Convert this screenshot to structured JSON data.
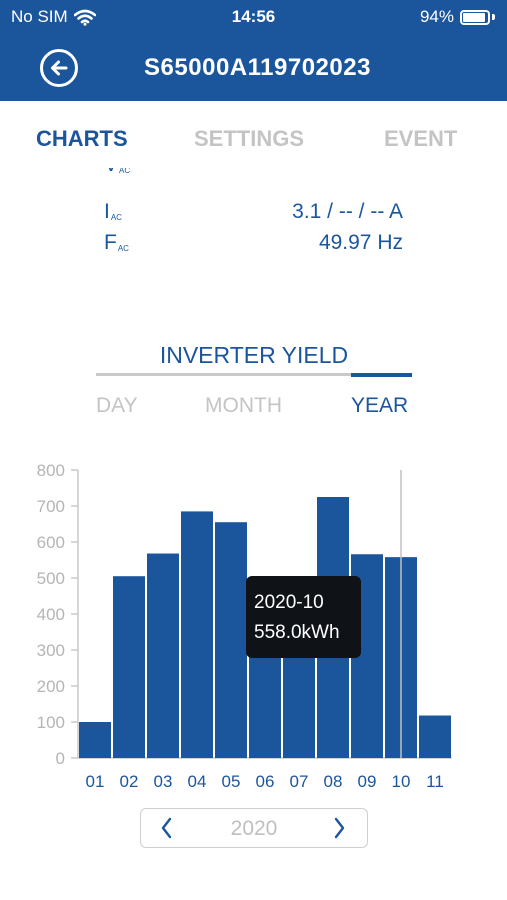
{
  "status_bar": {
    "carrier": "No SIM",
    "time": "14:56",
    "battery": "94%",
    "icons": [
      "wifi-icon",
      "battery-icon"
    ]
  },
  "header": {
    "title": "S65000A119702023",
    "back_icon": "back-arrow-icon"
  },
  "tabs": [
    {
      "label": "CHARTS",
      "active": true
    },
    {
      "label": "SETTINGS",
      "active": false
    },
    {
      "label": "EVENT",
      "active": false
    }
  ],
  "metrics": [
    {
      "label": "V",
      "sub": "AC",
      "value": "–––"
    },
    {
      "label": "I",
      "sub": "AC",
      "value": "3.1 / -- / -- A"
    },
    {
      "label": "F",
      "sub": "AC",
      "value": "49.97 Hz"
    }
  ],
  "yield": {
    "title": "INVERTER YIELD",
    "periods": [
      {
        "label": "DAY",
        "active": false
      },
      {
        "label": "MONTH",
        "active": false
      },
      {
        "label": "YEAR",
        "active": true
      }
    ]
  },
  "chart_data": {
    "type": "bar",
    "categories": [
      "01",
      "02",
      "03",
      "04",
      "05",
      "06",
      "07",
      "08",
      "09",
      "10",
      "11"
    ],
    "values": [
      100,
      505,
      568,
      685,
      655,
      300,
      490,
      725,
      566,
      558,
      118
    ],
    "ylim": [
      0,
      800
    ],
    "yticks": [
      "0",
      "100",
      "200",
      "300",
      "400",
      "500",
      "600",
      "700",
      "800"
    ],
    "highlight_index": 9,
    "bar_color": "#1b569d",
    "grid": false
  },
  "tooltip": {
    "date": "2020-10",
    "value": "558.0kWh"
  },
  "year_nav": {
    "year": "2020",
    "prev_icon": "chevron-left-icon",
    "next_icon": "chevron-right-icon"
  }
}
